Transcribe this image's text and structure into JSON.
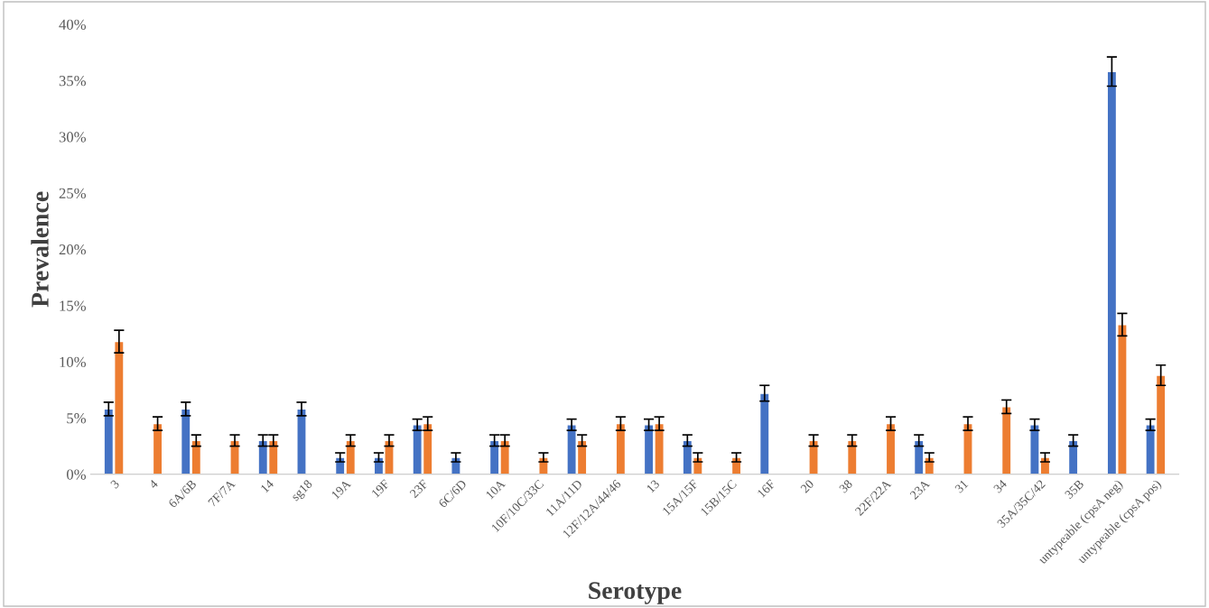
{
  "chart_data": {
    "type": "bar",
    "xlabel": "Serotype",
    "ylabel": "Prevalence",
    "categories": [
      "3",
      "4",
      "6A/6B",
      "7F/7A",
      "14",
      "sg18",
      "19A",
      "19F",
      "23F",
      "6C/6D",
      "10A",
      "10F/10C/33C",
      "11A/11D",
      "12F/12A/44/46",
      "13",
      "15A/15F",
      "15B/15C",
      "16F",
      "20",
      "38",
      "22F/22A",
      "23A",
      "31",
      "34",
      "35A/35C/42",
      "35B",
      "untypeable (cpsA neg)",
      "untypeable (cpsA pos)"
    ],
    "series": [
      {
        "color": "#4472c4",
        "values": [
          5.8,
          null,
          5.8,
          null,
          3,
          5.8,
          1.5,
          1.5,
          4.4,
          1.5,
          3,
          null,
          4.4,
          null,
          4.4,
          3,
          null,
          7.2,
          null,
          null,
          null,
          3,
          null,
          null,
          4.4,
          3,
          35.8,
          4.4
        ],
        "errors": [
          0.6,
          null,
          0.6,
          null,
          0.5,
          0.6,
          0.4,
          0.4,
          0.5,
          0.4,
          0.5,
          null,
          0.5,
          null,
          0.5,
          0.5,
          null,
          0.7,
          null,
          null,
          null,
          0.5,
          null,
          null,
          0.5,
          0.5,
          1.3,
          0.5
        ]
      },
      {
        "color": "#ed7d31",
        "values": [
          11.8,
          4.5,
          3,
          3,
          3,
          null,
          3,
          3,
          4.5,
          null,
          3,
          1.5,
          3,
          4.5,
          4.5,
          1.5,
          1.5,
          null,
          3,
          3,
          4.5,
          1.5,
          4.5,
          6,
          1.5,
          null,
          13.3,
          8.8
        ],
        "errors": [
          1.0,
          0.6,
          0.5,
          0.5,
          0.5,
          null,
          0.5,
          0.5,
          0.6,
          null,
          0.5,
          0.4,
          0.5,
          0.6,
          0.6,
          0.4,
          0.4,
          null,
          0.5,
          0.5,
          0.6,
          0.4,
          0.6,
          0.6,
          0.4,
          null,
          1.0,
          0.9
        ]
      }
    ],
    "ylim": [
      0,
      40
    ],
    "yticks": [
      {
        "value": 0,
        "label": "0%"
      },
      {
        "value": 5,
        "label": "5%"
      },
      {
        "value": 10,
        "label": "10%"
      },
      {
        "value": 15,
        "label": "15%"
      },
      {
        "value": 20,
        "label": "20%"
      },
      {
        "value": 25,
        "label": "25%"
      },
      {
        "value": 30,
        "label": "30%"
      },
      {
        "value": 35,
        "label": "35%"
      },
      {
        "value": 40,
        "label": "40%"
      }
    ],
    "grid": false,
    "legend": false
  }
}
